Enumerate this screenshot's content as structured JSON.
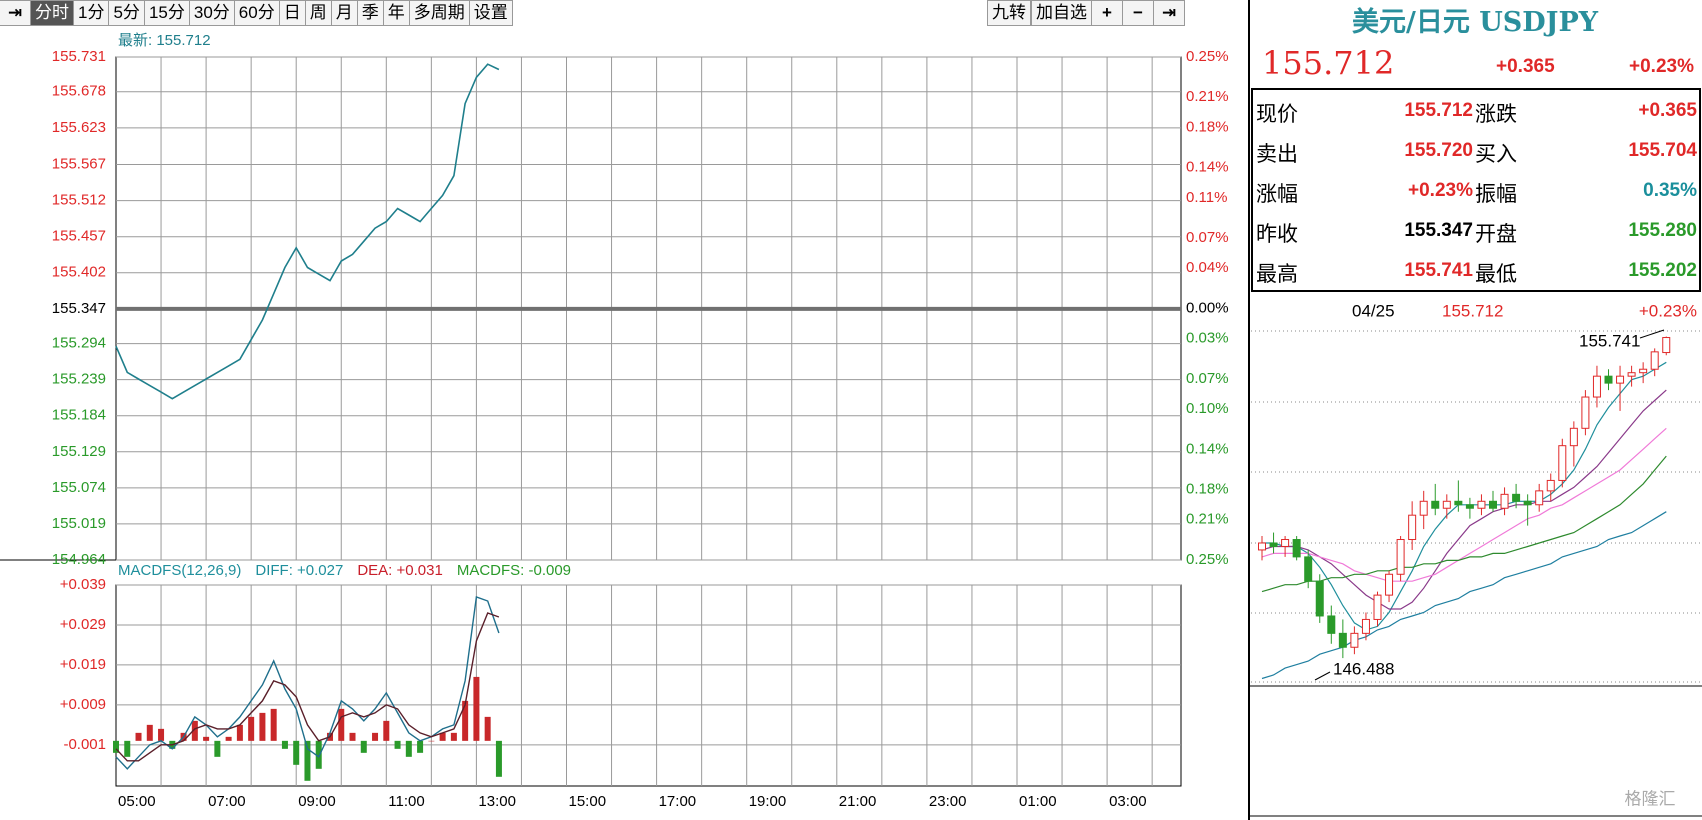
{
  "toolbar": {
    "left": [
      "分时",
      "1分",
      "5分",
      "15分",
      "30分",
      "60分",
      "日",
      "周",
      "月",
      "季",
      "年",
      "多周期",
      "设置"
    ],
    "right": [
      "九转",
      "加自选"
    ]
  },
  "quote": {
    "title": "美元/日元 USDJPY",
    "price": "155.712",
    "change": "+0.365",
    "change_pct": "+0.23%",
    "rows": [
      [
        "现价",
        "155.712",
        "涨跌",
        "+0.365"
      ],
      [
        "卖出",
        "155.720",
        "买入",
        "155.704"
      ],
      [
        "涨幅",
        "+0.23%",
        "振幅",
        "0.35%"
      ],
      [
        "昨收",
        "155.347",
        "开盘",
        "155.280"
      ],
      [
        "最高",
        "155.741",
        "最低",
        "155.202"
      ]
    ],
    "value_colors": [
      [
        "#e02828",
        "#e02828"
      ],
      [
        "#e02828",
        "#e02828"
      ],
      [
        "#e02828",
        "#1a8f9c"
      ],
      [
        "#000000",
        "#2a9a2a"
      ],
      [
        "#e02828",
        "#2a9a2a"
      ]
    ]
  },
  "intraday": {
    "latest_label": "最新: 155.712",
    "ylim": [
      154.964,
      155.731
    ],
    "yticks": [
      155.731,
      155.678,
      155.623,
      155.567,
      155.512,
      155.457,
      155.402,
      155.347,
      155.294,
      155.239,
      155.184,
      155.129,
      155.074,
      155.019,
      154.964
    ],
    "y2lim": [
      -0.25,
      0.25
    ],
    "y2ticks": [
      {
        "value": 0.25,
        "label": "0.25%"
      },
      {
        "value": 0.21,
        "label": "0.21%"
      },
      {
        "value": 0.18,
        "label": "0.18%"
      },
      {
        "value": 0.14,
        "label": "0.14%"
      },
      {
        "value": 0.11,
        "label": "0.11%"
      },
      {
        "value": 0.07,
        "label": "0.07%"
      },
      {
        "value": 0.04,
        "label": "0.04%"
      },
      {
        "value": 0,
        "label": "0.00%"
      },
      {
        "value": -0.03,
        "label": "0.03%"
      },
      {
        "value": -0.07,
        "label": "0.07%"
      },
      {
        "value": -0.1,
        "label": "0.10%"
      },
      {
        "value": -0.14,
        "label": "0.14%"
      },
      {
        "value": -0.18,
        "label": "0.18%"
      },
      {
        "value": -0.21,
        "label": "0.21%"
      },
      {
        "value": -0.25,
        "label": "0.25%"
      }
    ],
    "xticks": [
      "05:00",
      "07:00",
      "09:00",
      "11:00",
      "13:00",
      "15:00",
      "17:00",
      "19:00",
      "21:00",
      "23:00",
      "01:00",
      "03:00"
    ],
    "up_color": "#e02828",
    "down_color": "#2a9a2a",
    "flat_color": "#000000",
    "price": {
      "color": "#1f7f8c",
      "values": [
        155.29,
        155.25,
        155.24,
        155.23,
        155.22,
        155.21,
        155.22,
        155.23,
        155.24,
        155.25,
        155.26,
        155.27,
        155.3,
        155.33,
        155.37,
        155.41,
        155.44,
        155.41,
        155.4,
        155.39,
        155.42,
        155.43,
        155.45,
        155.47,
        155.48,
        155.5,
        155.49,
        155.48,
        155.5,
        155.52,
        155.55,
        155.66,
        155.7,
        155.72,
        155.712
      ]
    }
  },
  "macd": {
    "legend": {
      "name": "MACDFS(12,26,9)",
      "diff": "DIFF: +0.027",
      "dea": "DEA: +0.031",
      "hist": "MACDFS: -0.009"
    },
    "ylim": [
      -0.0113,
      0.039
    ],
    "yticks": [
      {
        "value": 0.039,
        "label": "+0.039"
      },
      {
        "value": 0.029,
        "label": "+0.029"
      },
      {
        "value": 0.019,
        "label": "+0.019"
      },
      {
        "value": 0.009,
        "label": "+0.009"
      },
      -0.001
    ],
    "tick_color": "#e02828",
    "diff": {
      "color": "#1f6f8c",
      "values": [
        -0.004,
        -0.007,
        -0.004,
        -0.001,
        0.0,
        -0.002,
        0.001,
        0.006,
        0.004,
        0.001,
        0.003,
        0.006,
        0.01,
        0.014,
        0.02,
        0.013,
        0.008,
        -0.002,
        -0.004,
        0.002,
        0.01,
        0.008,
        0.005,
        0.008,
        0.012,
        0.007,
        0.002,
        0.0,
        0.001,
        0.003,
        0.004,
        0.015,
        0.036,
        0.035,
        0.027
      ]
    },
    "dea": {
      "color": "#5a1f2a",
      "values": [
        -0.002,
        -0.005,
        -0.005,
        -0.003,
        -0.001,
        -0.001,
        0.0,
        0.003,
        0.004,
        0.003,
        0.003,
        0.004,
        0.007,
        0.01,
        0.015,
        0.014,
        0.011,
        0.004,
        0.0,
        0.001,
        0.006,
        0.007,
        0.006,
        0.007,
        0.009,
        0.008,
        0.004,
        0.002,
        0.001,
        0.002,
        0.003,
        0.009,
        0.025,
        0.032,
        0.031
      ]
    },
    "hist": {
      "up_color": "#c8282a",
      "down_color": "#2a9a2a",
      "values": [
        -0.003,
        -0.004,
        0.002,
        0.004,
        0.003,
        -0.002,
        0.002,
        0.005,
        0.001,
        -0.004,
        0.001,
        0.004,
        0.006,
        0.007,
        0.008,
        -0.002,
        -0.006,
        -0.01,
        -0.007,
        0.002,
        0.008,
        0.002,
        -0.003,
        0.002,
        0.005,
        -0.002,
        -0.004,
        -0.003,
        0.0,
        0.002,
        0.002,
        0.01,
        0.016,
        0.006,
        -0.009
      ]
    },
    "legend_colors": {
      "name": "#1f8f9c",
      "diff": "#1f8f9c",
      "dea": "#c81e2a",
      "hist": "#2a9a2a"
    }
  },
  "daily": {
    "date": "04/25",
    "price": "155.712",
    "change_pct": "+0.23%",
    "ylim": [
      145.8,
      155.9
    ],
    "up_color": "#e02828",
    "down_color": "#2a9a2a",
    "candles": [
      [
        149.6,
        150.0,
        149.3,
        149.8
      ],
      [
        149.8,
        150.1,
        149.5,
        149.7
      ],
      [
        149.7,
        150.0,
        149.4,
        149.9
      ],
      [
        149.9,
        150.0,
        149.3,
        149.4
      ],
      [
        149.4,
        149.6,
        148.5,
        148.7
      ],
      [
        148.7,
        148.9,
        147.5,
        147.7
      ],
      [
        147.7,
        148.0,
        146.9,
        147.2
      ],
      [
        147.2,
        147.6,
        146.488,
        146.8
      ],
      [
        146.8,
        147.4,
        146.6,
        147.2
      ],
      [
        147.2,
        147.8,
        147.0,
        147.6
      ],
      [
        147.6,
        148.4,
        147.4,
        148.3
      ],
      [
        148.3,
        149.0,
        148.1,
        148.9
      ],
      [
        148.9,
        150.0,
        148.7,
        149.9
      ],
      [
        149.9,
        151.0,
        149.6,
        150.6
      ],
      [
        150.6,
        151.3,
        150.2,
        151.0
      ],
      [
        151.0,
        151.5,
        150.6,
        150.8
      ],
      [
        150.8,
        151.2,
        150.5,
        151.0
      ],
      [
        151.0,
        151.6,
        150.7,
        150.9
      ],
      [
        150.9,
        151.1,
        150.5,
        150.8
      ],
      [
        150.8,
        151.2,
        150.6,
        151.0
      ],
      [
        151.0,
        151.3,
        150.7,
        150.8
      ],
      [
        150.8,
        151.4,
        150.6,
        151.2
      ],
      [
        151.2,
        151.5,
        150.8,
        151.0
      ],
      [
        151.0,
        151.2,
        150.3,
        150.9
      ],
      [
        150.9,
        151.5,
        150.7,
        151.3
      ],
      [
        151.3,
        151.8,
        151.0,
        151.6
      ],
      [
        151.6,
        152.8,
        151.4,
        152.6
      ],
      [
        152.6,
        153.3,
        152.0,
        153.1
      ],
      [
        153.1,
        154.2,
        152.9,
        154.0
      ],
      [
        154.0,
        154.9,
        153.7,
        154.6
      ],
      [
        154.6,
        154.8,
        154.2,
        154.4
      ],
      [
        154.4,
        154.9,
        153.6,
        154.6
      ],
      [
        154.6,
        154.9,
        154.3,
        154.7
      ],
      [
        154.7,
        155.0,
        154.4,
        154.8
      ],
      [
        154.8,
        155.4,
        154.6,
        155.3
      ],
      [
        155.28,
        155.741,
        155.202,
        155.712
      ]
    ],
    "ma": [
      {
        "color": "#1f8f9c",
        "values": [
          149.8,
          149.8,
          149.7,
          149.7,
          149.5,
          149.1,
          148.6,
          148.0,
          147.5,
          147.3,
          147.4,
          147.8,
          148.4,
          149.0,
          149.7,
          150.2,
          150.6,
          150.9,
          150.9,
          150.9,
          150.9,
          150.9,
          151.0,
          151.0,
          151.0,
          151.2,
          151.5,
          151.9,
          152.5,
          153.2,
          153.7,
          154.1,
          154.5,
          154.6,
          154.8,
          155.0
        ]
      },
      {
        "color": "#8a3a8a",
        "values": [
          149.6,
          149.7,
          149.7,
          149.7,
          149.6,
          149.4,
          149.2,
          148.9,
          148.6,
          148.3,
          148.1,
          147.9,
          147.9,
          148.1,
          148.5,
          149.0,
          149.5,
          149.9,
          150.3,
          150.5,
          150.7,
          150.8,
          150.9,
          150.9,
          151.0,
          151.0,
          151.2,
          151.4,
          151.7,
          152.0,
          152.4,
          152.8,
          153.2,
          153.6,
          153.9,
          154.2
        ]
      },
      {
        "color": "#f07ad8",
        "values": [
          149.4,
          149.5,
          149.5,
          149.5,
          149.5,
          149.4,
          149.3,
          149.2,
          149.0,
          148.9,
          148.8,
          148.7,
          148.7,
          148.7,
          148.8,
          148.9,
          149.1,
          149.3,
          149.5,
          149.7,
          149.9,
          150.1,
          150.3,
          150.5,
          150.6,
          150.8,
          150.9,
          151.1,
          151.3,
          151.5,
          151.7,
          151.9,
          152.2,
          152.5,
          152.8,
          153.1
        ]
      },
      {
        "color": "#2e8a2e",
        "values": [
          148.4,
          148.5,
          148.6,
          148.6,
          148.7,
          148.7,
          148.8,
          148.8,
          148.9,
          148.9,
          149.0,
          149.0,
          149.1,
          149.1,
          149.2,
          149.2,
          149.3,
          149.3,
          149.4,
          149.4,
          149.5,
          149.5,
          149.6,
          149.7,
          149.8,
          149.9,
          150.0,
          150.1,
          150.3,
          150.5,
          150.7,
          150.9,
          151.2,
          151.5,
          151.9,
          152.3
        ]
      },
      {
        "color": "#1f7fa0",
        "values": [
          145.9,
          146.0,
          146.2,
          146.3,
          146.4,
          146.6,
          146.7,
          146.8,
          147.0,
          147.1,
          147.3,
          147.4,
          147.6,
          147.7,
          147.8,
          148.0,
          148.1,
          148.2,
          148.4,
          148.5,
          148.6,
          148.8,
          148.9,
          149.0,
          149.1,
          149.2,
          149.4,
          149.5,
          149.6,
          149.7,
          149.9,
          150.0,
          150.1,
          150.3,
          150.5,
          150.7
        ]
      }
    ],
    "annotations": {
      "high": "155.741",
      "low": "146.488"
    }
  },
  "watermark": "格隆汇"
}
